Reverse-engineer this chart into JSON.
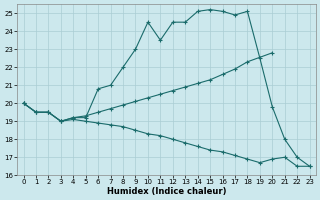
{
  "xlabel": "Humidex (Indice chaleur)",
  "bg_color": "#cce8ed",
  "grid_color": "#aacdd4",
  "line_color": "#1a6b6b",
  "xlim_min": -0.5,
  "xlim_max": 23.5,
  "ylim_min": 16,
  "ylim_max": 25.5,
  "yticks": [
    16,
    17,
    18,
    19,
    20,
    21,
    22,
    23,
    24,
    25
  ],
  "xticks": [
    0,
    1,
    2,
    3,
    4,
    5,
    6,
    7,
    8,
    9,
    10,
    11,
    12,
    13,
    14,
    15,
    16,
    17,
    18,
    19,
    20,
    21,
    22,
    23
  ],
  "line1_x": [
    0,
    1,
    2,
    3,
    4,
    5,
    6,
    7,
    8,
    9,
    10,
    11,
    12,
    13,
    14,
    15,
    16,
    17,
    18,
    19,
    20,
    21,
    22,
    23
  ],
  "line1_y": [
    20.0,
    19.5,
    19.5,
    19.0,
    19.2,
    19.2,
    20.8,
    21.0,
    22.0,
    23.0,
    24.5,
    23.5,
    24.5,
    24.5,
    25.1,
    25.2,
    25.1,
    24.9,
    25.1,
    22.5,
    19.8,
    18.0,
    17.0,
    16.5
  ],
  "line2_x": [
    0,
    1,
    2,
    3,
    4,
    5,
    6,
    7,
    8,
    9,
    10,
    11,
    12,
    13,
    14,
    15,
    16,
    17,
    18,
    20
  ],
  "line2_y": [
    20.0,
    19.5,
    19.5,
    19.0,
    19.2,
    19.3,
    19.5,
    19.7,
    19.9,
    20.1,
    20.3,
    20.5,
    20.7,
    20.9,
    21.1,
    21.3,
    21.6,
    21.9,
    22.3,
    22.8
  ],
  "line3_x": [
    0,
    1,
    2,
    3,
    4,
    5,
    6,
    7,
    8,
    9,
    10,
    11,
    12,
    13,
    14,
    15,
    16,
    17,
    18,
    19,
    20,
    21,
    22,
    23
  ],
  "line3_y": [
    20.0,
    19.5,
    19.5,
    19.0,
    19.1,
    19.0,
    18.9,
    18.8,
    18.7,
    18.5,
    18.3,
    18.2,
    18.0,
    17.8,
    17.6,
    17.4,
    17.3,
    17.1,
    16.9,
    16.7,
    16.9,
    17.0,
    16.5,
    16.5
  ]
}
